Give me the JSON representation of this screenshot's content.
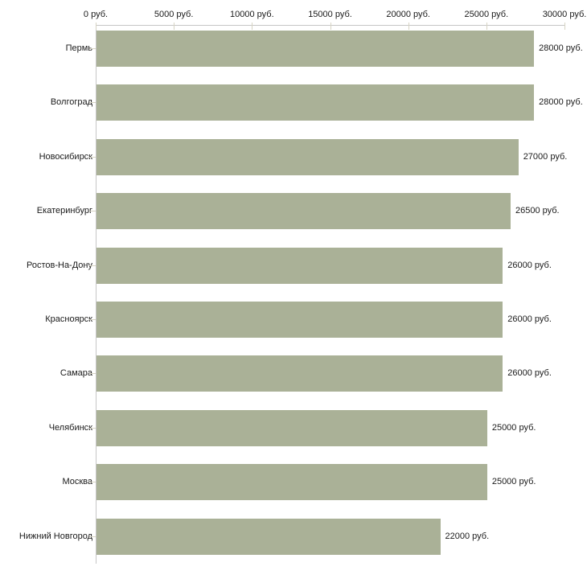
{
  "chart_data": {
    "type": "bar",
    "orientation": "horizontal",
    "title": "",
    "xlabel": "",
    "ylabel": "",
    "categories": [
      "Пермь",
      "Волгоград",
      "Новосибирск",
      "Екатеринбург",
      "Ростов-На-Дону",
      "Красноярск",
      "Самара",
      "Челябинск",
      "Москва",
      "Нижний Новгород"
    ],
    "values": [
      28000,
      28000,
      27000,
      26500,
      26000,
      26000,
      26000,
      25000,
      25000,
      22000
    ],
    "value_labels": [
      "28000 руб.",
      "28000 руб.",
      "27000 руб.",
      "26500 руб.",
      "26000 руб.",
      "26000 руб.",
      "26000 руб.",
      "25000 руб.",
      "25000 руб.",
      "22000 руб."
    ],
    "xlim": [
      0,
      30000
    ],
    "x_ticks": [
      0,
      5000,
      10000,
      15000,
      20000,
      25000,
      30000
    ],
    "x_tick_labels": [
      "0 руб.",
      "5000 руб.",
      "10000 руб.",
      "15000 руб.",
      "20000 руб.",
      "25000 руб.",
      "30000 руб."
    ],
    "axis_position": "top",
    "grid": false,
    "legend": false,
    "colors": {
      "bar_fill": "#aab197",
      "axis_line": "#c6c6c6",
      "tick_mark": "#d7d4c4",
      "text": "#1a1a1a",
      "background": "#ffffff"
    }
  }
}
